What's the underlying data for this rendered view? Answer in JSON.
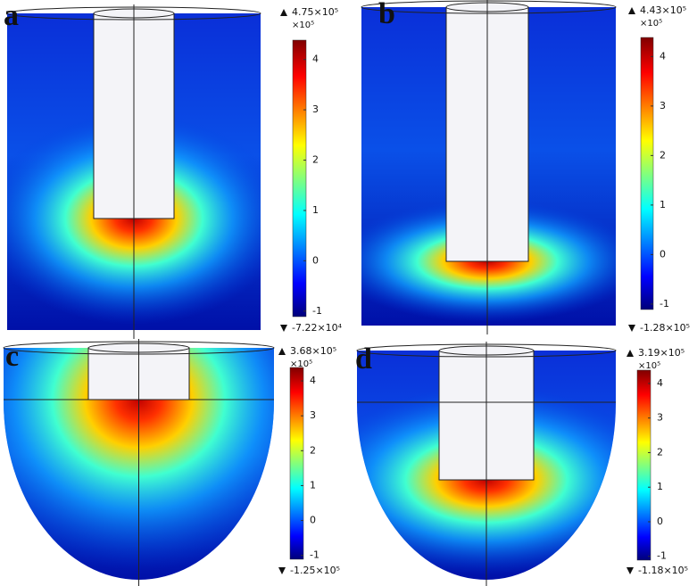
{
  "panels": [
    {
      "label": "a",
      "max": "4.75×10⁵",
      "unit": "×10⁵",
      "ticks": [
        -1,
        0,
        1,
        2,
        3,
        4
      ],
      "min": "-7.22×10⁴"
    },
    {
      "label": "b",
      "max": "4.43×10⁵",
      "unit": "×10⁵",
      "ticks": [
        -1,
        0,
        1,
        2,
        3,
        4
      ],
      "min": "-1.28×10⁵"
    },
    {
      "label": "c",
      "max": "3.68×10⁵",
      "unit": "×10⁵",
      "ticks": [
        -1,
        0,
        1,
        2,
        3,
        4
      ],
      "min": "-1.25×10⁵"
    },
    {
      "label": "d",
      "max": "3.19×10⁵",
      "unit": "×10⁵",
      "ticks": [
        -1,
        0,
        1,
        2,
        3,
        4
      ],
      "min": "-1.18×10⁵"
    }
  ]
}
